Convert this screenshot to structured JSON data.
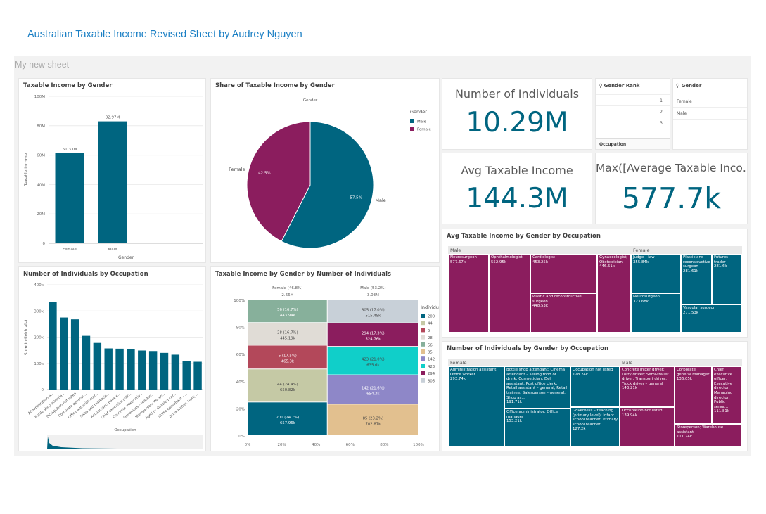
{
  "app": {
    "title": "Australian Taxable Income Revised Sheet by Audrey Nguyen",
    "sheet_title": "My new sheet"
  },
  "colors": {
    "male": "#006580",
    "female": "#8b1d5e",
    "accent": "#1a7fc4"
  },
  "panels": {
    "bar_gender": {
      "title": "Taxable Income by Gender"
    },
    "pie_gender": {
      "title": "Share of Taxable Income by Gender"
    },
    "bar_occupation": {
      "title": "Number of Individuals by Occupation"
    },
    "mekko": {
      "title": "Taxable Income by Gender by Number of Individuals"
    },
    "kpi_individuals": {
      "label": "Number of Individuals",
      "value": "10.29M"
    },
    "kpi_avg": {
      "label": "Avg Taxable Income",
      "value": "144.3M"
    },
    "kpi_max": {
      "label": "Max([Average Taxable Inco…",
      "value": "577.7k"
    },
    "filter_rank": {
      "title": "Gender Rank",
      "items": [
        "1",
        "2",
        "3"
      ]
    },
    "filter_gender": {
      "title": "Gender",
      "items": [
        "Female",
        "Male"
      ]
    },
    "filter_occupation": {
      "title": "Occupation"
    },
    "treemap_avg": {
      "title": "Avg Taxable Income by Gender by Occupation"
    },
    "treemap_count": {
      "title": "Number of Individuals by Gender by Occupation"
    }
  },
  "chart_data": [
    {
      "id": "bar_gender",
      "type": "bar",
      "categories": [
        "Female",
        "Male"
      ],
      "values": [
        61.33,
        82.97
      ],
      "value_labels": [
        "61.33M",
        "82.97M"
      ],
      "xlabel": "Gender",
      "ylabel": "Taxable Income",
      "ylim": [
        0,
        100
      ],
      "ytick_labels": [
        "0",
        "20M",
        "40M",
        "60M",
        "80M",
        "100M"
      ],
      "grid": true
    },
    {
      "id": "pie_gender",
      "type": "pie",
      "legend_title": "Gender",
      "header": "Gender",
      "legend_placement": "top-right",
      "slices": [
        {
          "label": "Male",
          "value": 57.5,
          "pct_label": "57.5%"
        },
        {
          "label": "Female",
          "value": 42.5,
          "pct_label": "42.5%"
        }
      ]
    },
    {
      "id": "bar_occupation",
      "type": "bar",
      "categories": [
        "Administration a…",
        "Bottle shop attenda…",
        "Occupation not listed",
        "Corporate general …",
        "Office administrator…",
        "Sales and marketin…",
        "Accountant; Bank e…",
        "Chief executive offic…",
        "Concrete mixer driv…",
        "Governess – teachin…",
        "Storeperson; Wareh…",
        "Aged or disabled car…",
        "Nurse consultant – …",
        "Drink waiter; Host; …"
      ],
      "values": [
        333,
        275,
        268,
        205,
        178,
        157,
        156,
        153,
        149,
        147,
        140,
        133,
        108,
        106
      ],
      "xlabel": "Occupation",
      "ylabel": "Sum(Individuals)",
      "ylim": [
        0,
        400
      ],
      "ytick_labels": [
        "0",
        "100k",
        "200k",
        "300k",
        "400k"
      ],
      "grid": true
    },
    {
      "id": "mekko",
      "type": "bar",
      "subtype": "marimekko",
      "legend_title": "Individuals",
      "legend_placement": "right",
      "legend": [
        {
          "label": "200",
          "color": "#006580"
        },
        {
          "label": "44",
          "color": "#c5c9a5"
        },
        {
          "label": "5",
          "color": "#b3485a"
        },
        {
          "label": "28",
          "color": "#e0dcd6"
        },
        {
          "label": "56",
          "color": "#87b09b"
        },
        {
          "label": "85",
          "color": "#e2c08f"
        },
        {
          "label": "142",
          "color": "#8e87c8"
        },
        {
          "label": "423",
          "color": "#10cfc9"
        },
        {
          "label": "294",
          "color": "#8b1d5e"
        },
        {
          "label": "805",
          "color": "#c8d0d8"
        }
      ],
      "columns": [
        {
          "label": "Female (46.8%)",
          "total": "2.66M",
          "width": 46.8,
          "segments": [
            {
              "key": "200",
              "share": 24.7,
              "label": "200 (24.7%)",
              "value": "657.96k"
            },
            {
              "key": "44",
              "share": 24.4,
              "label": "44 (24.4%)",
              "value": "650.82k"
            },
            {
              "key": "5",
              "share": 17.5,
              "label": "5 (17.5%)",
              "value": "465.3k"
            },
            {
              "key": "28",
              "share": 16.7,
              "label": "28 (16.7%)",
              "value": "445.19k"
            },
            {
              "key": "56",
              "share": 16.7,
              "label": "56 (16.7%)",
              "value": "443.94k"
            }
          ]
        },
        {
          "label": "Male (53.2%)",
          "total": "3.03M",
          "width": 53.2,
          "segments": [
            {
              "key": "85",
              "share": 23.2,
              "label": "85 (23.2%)",
              "value": "702.87k"
            },
            {
              "key": "142",
              "share": 21.6,
              "label": "142 (21.6%)",
              "value": "654.3k"
            },
            {
              "key": "423",
              "share": 21.0,
              "label": "423 (21.0%)",
              "value": "635.6k"
            },
            {
              "key": "294",
              "share": 17.3,
              "label": "294 (17.3%)",
              "value": "524.76k"
            },
            {
              "key": "805",
              "share": 17.0,
              "label": "805 (17.0%)",
              "value": "515.48k"
            }
          ]
        }
      ],
      "ytick_labels": [
        "0%",
        "20%",
        "40%",
        "60%",
        "80%",
        "100%"
      ],
      "xtick_labels": [
        "0%",
        "20%",
        "40%",
        "60%",
        "80%",
        "100%"
      ]
    },
    {
      "id": "treemap_avg",
      "type": "heatmap",
      "subtype": "treemap",
      "groups": [
        {
          "name": "Male",
          "items": [
            {
              "label": "Neurosurgeon",
              "value": "577.67k"
            },
            {
              "label": "Ophthalmologist",
              "value": "552.95k"
            },
            {
              "label": "Cardiologist",
              "value": "453.25k"
            },
            {
              "label": "Gynaecologist; Obstetrician",
              "value": "446.51k"
            },
            {
              "label": "Plastic and reconstructive surgeon",
              "value": "448.53k"
            }
          ]
        },
        {
          "name": "Female",
          "items": [
            {
              "label": "Judge – law",
              "value": "355.84k"
            },
            {
              "label": "Plastic and reconstructive surgeon",
              "value": "281.61k"
            },
            {
              "label": "Futures trader",
              "value": "281.6k"
            },
            {
              "label": "Neurosurgeon",
              "value": "323.68k"
            },
            {
              "label": "Vascular surgeon",
              "value": "271.53k"
            }
          ]
        }
      ]
    },
    {
      "id": "treemap_count",
      "type": "heatmap",
      "subtype": "treemap",
      "groups": [
        {
          "name": "Female",
          "items": [
            {
              "label": "Administration assistant; Office worker",
              "value": "293.74k"
            },
            {
              "label": "Bottle shop attendant; Cinema attendant – selling food or drink; Cosmetician; Deli assistant; Post office clerk; Retail assistant – general; Retail trainee; Salesperson – general; Shop as…",
              "value": "191.71k"
            },
            {
              "label": "Office administrator; Office manager",
              "value": "153.21k"
            },
            {
              "label": "Occupation not listed",
              "value": "128.24k"
            },
            {
              "label": "Governess – teaching (primary level); Infant school teacher; Primary school teacher",
              "value": "127.2k"
            }
          ]
        },
        {
          "name": "Male",
          "items": [
            {
              "label": "Concrete mixer driver; Lorry driver; Semi-trailer driver; Transport driver; Truck driver – general",
              "value": "143.21k"
            },
            {
              "label": "Corporate general manager",
              "value": "136.05k"
            },
            {
              "label": "Chief executive officer; Executive director; Managing director; Public serva…",
              "value": "111.81k"
            },
            {
              "label": "Occupation not listed",
              "value": "139.94k"
            },
            {
              "label": "Storeperson; Warehouse assistant",
              "value": "111.74k"
            }
          ]
        }
      ]
    }
  ]
}
